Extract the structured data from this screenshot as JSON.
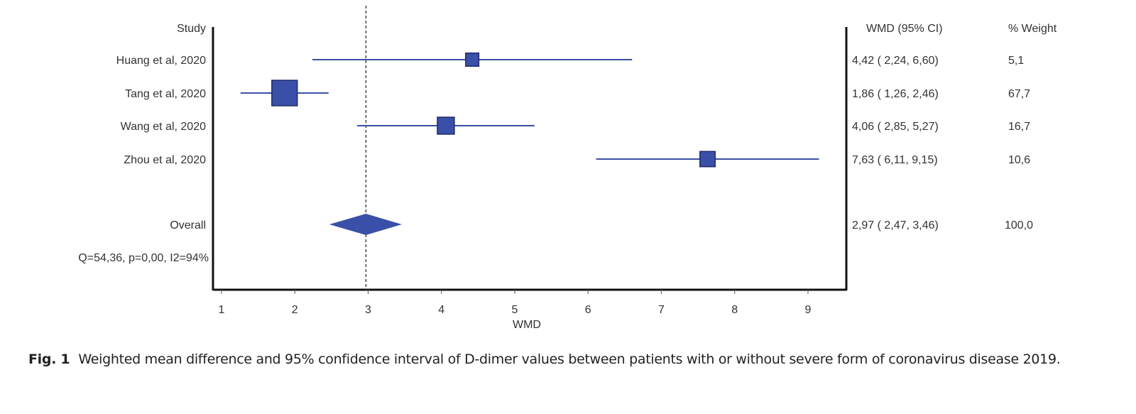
{
  "chart_data": {
    "type": "forest",
    "xlabel": "WMD",
    "xlim": [
      0.85,
      9.6
    ],
    "xticks": [
      1,
      2,
      3,
      4,
      5,
      6,
      7,
      8,
      9
    ],
    "reference_line": 2.97,
    "grid": false,
    "headers": {
      "study": "Study",
      "estimate": "WMD (95% CI)",
      "weight": "% Weight"
    },
    "studies": [
      {
        "name": "Huang et al, 2020",
        "wmd": 4.42,
        "lower": 2.24,
        "upper": 6.6,
        "weight": 5.1,
        "ci_text": "4,42 ( 2,24, 6,60)",
        "weight_text": "5,1"
      },
      {
        "name": "Tang et al, 2020",
        "wmd": 1.86,
        "lower": 1.26,
        "upper": 2.46,
        "weight": 67.7,
        "ci_text": "1,86 ( 1,26, 2,46)",
        "weight_text": "67,7"
      },
      {
        "name": "Wang et al, 2020",
        "wmd": 4.06,
        "lower": 2.85,
        "upper": 5.27,
        "weight": 16.7,
        "ci_text": "4,06 ( 2,85, 5,27)",
        "weight_text": "16,7"
      },
      {
        "name": "Zhou et al, 2020",
        "wmd": 7.63,
        "lower": 6.11,
        "upper": 9.15,
        "weight": 10.6,
        "ci_text": "7,63 ( 6,11, 9,15)",
        "weight_text": "10,6"
      }
    ],
    "overall": {
      "name": "Overall",
      "wmd": 2.97,
      "lower": 2.47,
      "upper": 3.46,
      "weight": 100.0,
      "ci_text": "2,97 ( 2,47, 3,46)",
      "weight_text": "100,0"
    },
    "heterogeneity": "Q=54,36, p=0,00, I2=94%",
    "colors": {
      "marker": "#3a50a8",
      "marker_border": "#1c2a66",
      "line": "#3a50a8",
      "axis": "#111111"
    }
  },
  "caption": {
    "label": "Fig. 1",
    "text": "Weighted mean difference and 95% confidence interval of D-dimer values between patients with or without severe form of coronavirus disease 2019."
  }
}
